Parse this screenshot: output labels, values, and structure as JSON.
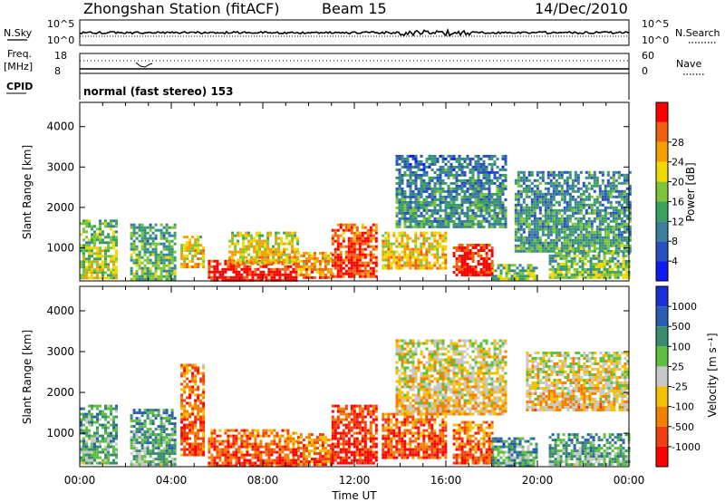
{
  "header": {
    "station": "Zhongshan Station (fitACF)",
    "beam": "Beam 15",
    "date": "14/Dec/2010"
  },
  "top_panels": {
    "nsky": {
      "label": "N.Sky",
      "ticks_left": [
        "10^5",
        "10^0"
      ]
    },
    "nsearch": {
      "label": "N.Search",
      "ticks_right": [
        "10^5",
        "10^0"
      ]
    },
    "freq": {
      "label_line1": "Freq.",
      "label_line2": "[MHz]",
      "ticks_left": [
        "18",
        "8"
      ]
    },
    "nave": {
      "label": "Nave",
      "ticks_right": [
        "60",
        "0"
      ]
    },
    "cpid": {
      "label": "CPID",
      "text": "normal (fast stereo) 153"
    }
  },
  "chart_data": [
    {
      "type": "heatmap",
      "name": "power",
      "xlabel": "Time UT",
      "ylabel": "Slant Range [km]",
      "x_ticks": [
        "00:00",
        "04:00",
        "08:00",
        "12:00",
        "16:00",
        "20:00",
        "00:00"
      ],
      "x_range_hours": [
        0,
        24
      ],
      "y_ticks": [
        1000,
        2000,
        3000,
        4000
      ],
      "ylim": [
        180,
        4600
      ],
      "colorbar": {
        "label": "Power [dB]",
        "ticks": [
          4,
          8,
          12,
          16,
          20,
          24,
          28
        ],
        "colors": [
          "#0d1bf0",
          "#2a4fbf",
          "#3a7f9c",
          "#3aa05f",
          "#7cc43a",
          "#f0d800",
          "#f5a000",
          "#f06010",
          "#ff0000"
        ]
      },
      "regions": [
        {
          "t0": 0.0,
          "t1": 1.6,
          "r0": 250,
          "r1": 1700,
          "level": 0.45
        },
        {
          "t0": 2.2,
          "t1": 4.2,
          "r0": 250,
          "r1": 1600,
          "level": 0.35
        },
        {
          "t0": 4.4,
          "t1": 5.4,
          "r0": 500,
          "r1": 1300,
          "level": 0.6
        },
        {
          "t0": 5.6,
          "t1": 9.5,
          "r0": 200,
          "r1": 700,
          "level": 0.9
        },
        {
          "t0": 6.5,
          "t1": 9.5,
          "r0": 600,
          "r1": 1400,
          "level": 0.55
        },
        {
          "t0": 9.5,
          "t1": 11.0,
          "r0": 250,
          "r1": 900,
          "level": 0.65
        },
        {
          "t0": 11.0,
          "t1": 13.0,
          "r0": 300,
          "r1": 1600,
          "level": 0.8
        },
        {
          "t0": 13.2,
          "t1": 16.0,
          "r0": 500,
          "r1": 1400,
          "level": 0.6
        },
        {
          "t0": 16.3,
          "t1": 18.0,
          "r0": 300,
          "r1": 1100,
          "level": 0.9
        },
        {
          "t0": 13.8,
          "t1": 18.6,
          "r0": 1500,
          "r1": 3300,
          "level": 0.25
        },
        {
          "t0": 18.0,
          "t1": 20.0,
          "r0": 200,
          "r1": 600,
          "level": 0.4
        },
        {
          "t0": 19.0,
          "t1": 24.0,
          "r0": 900,
          "r1": 2900,
          "level": 0.28
        },
        {
          "t0": 20.5,
          "t1": 24.0,
          "r0": 250,
          "r1": 900,
          "level": 0.4
        }
      ]
    },
    {
      "type": "heatmap",
      "name": "velocity",
      "xlabel": "Time UT",
      "ylabel": "Slant Range [km]",
      "x_ticks": [
        "00:00",
        "04:00",
        "08:00",
        "12:00",
        "16:00",
        "20:00",
        "00:00"
      ],
      "x_range_hours": [
        0,
        24
      ],
      "y_ticks": [
        1000,
        2000,
        3000,
        4000
      ],
      "ylim": [
        180,
        4600
      ],
      "colorbar": {
        "label": "Velocity [m s⁻¹]",
        "ticks": [
          "1000",
          "500",
          "100",
          "25",
          "-25",
          "-100",
          "-500",
          "-1000"
        ],
        "colors": [
          "#1a2ed8",
          "#2a5db0",
          "#3a8c70",
          "#5cc040",
          "#c8c8c8",
          "#f5c000",
          "#f58000",
          "#f04010",
          "#ff0000"
        ]
      },
      "regions": [
        {
          "t0": 0.0,
          "t1": 1.6,
          "r0": 250,
          "r1": 1700,
          "level": 0.3
        },
        {
          "t0": 2.2,
          "t1": 4.2,
          "r0": 250,
          "r1": 1600,
          "level": 0.28
        },
        {
          "t0": 4.4,
          "t1": 5.4,
          "r0": 500,
          "r1": 2700,
          "level": 0.72
        },
        {
          "t0": 5.6,
          "t1": 9.5,
          "r0": 200,
          "r1": 1100,
          "level": 0.75
        },
        {
          "t0": 9.5,
          "t1": 11.0,
          "r0": 250,
          "r1": 1000,
          "level": 0.7
        },
        {
          "t0": 11.0,
          "t1": 13.0,
          "r0": 300,
          "r1": 1700,
          "level": 0.82
        },
        {
          "t0": 13.2,
          "t1": 16.0,
          "r0": 400,
          "r1": 1500,
          "level": 0.74
        },
        {
          "t0": 16.3,
          "t1": 18.0,
          "r0": 300,
          "r1": 1300,
          "level": 0.72
        },
        {
          "t0": 13.8,
          "t1": 18.6,
          "r0": 1500,
          "r1": 3300,
          "level": 0.5
        },
        {
          "t0": 18.0,
          "t1": 20.0,
          "r0": 200,
          "r1": 900,
          "level": 0.25
        },
        {
          "t0": 19.5,
          "t1": 24.0,
          "r0": 1600,
          "r1": 3000,
          "level": 0.5
        },
        {
          "t0": 20.5,
          "t1": 24.0,
          "r0": 250,
          "r1": 1000,
          "level": 0.28
        }
      ]
    }
  ]
}
